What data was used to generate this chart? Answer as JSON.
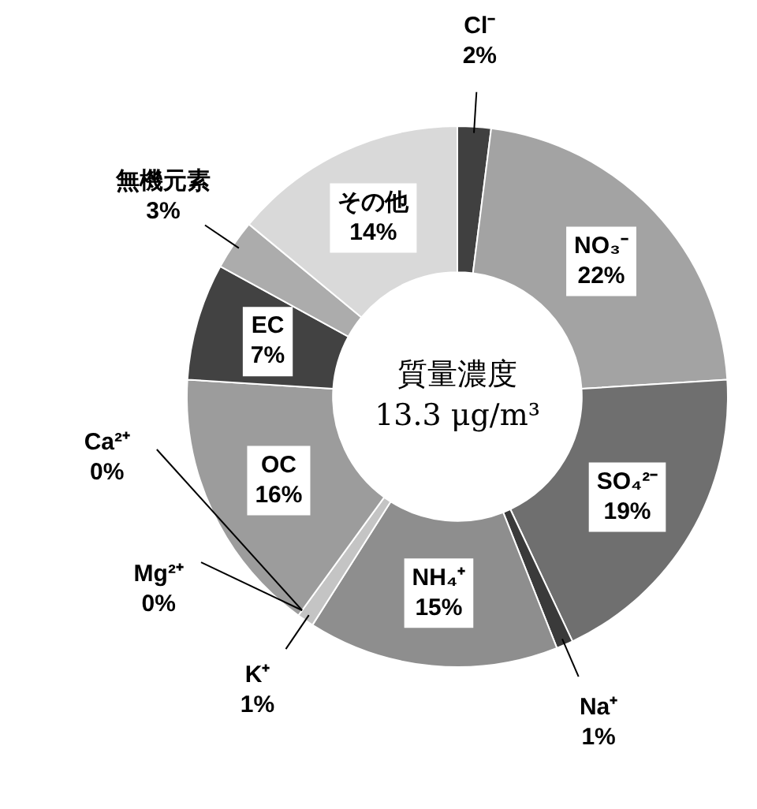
{
  "chart_data": {
    "type": "donut",
    "categories": [
      "Cl⁻",
      "NO₃⁻",
      "SO₄²⁻",
      "Na⁺",
      "NH₄⁺",
      "K⁺",
      "Mg²⁺",
      "Ca²⁺",
      "OC",
      "EC",
      "無機元素",
      "その他"
    ],
    "values": [
      2,
      22,
      19,
      1,
      15,
      1,
      0,
      0,
      16,
      7,
      3,
      14
    ],
    "value_labels": [
      "2%",
      "22%",
      "19%",
      "1%",
      "15%",
      "1%",
      "0%",
      "0%",
      "16%",
      "7%",
      "3%",
      "14%"
    ],
    "colors": [
      "#404040",
      "#a3a3a3",
      "#6f6f6f",
      "#3a3a3a",
      "#8e8e8e",
      "#c4c4c4",
      "#e3e3e3",
      "#b5b5b5",
      "#9c9c9c",
      "#424242",
      "#acacac",
      "#d9d9d9"
    ],
    "annotations": [
      "質量濃度",
      "13.3 μg/m³"
    ]
  }
}
